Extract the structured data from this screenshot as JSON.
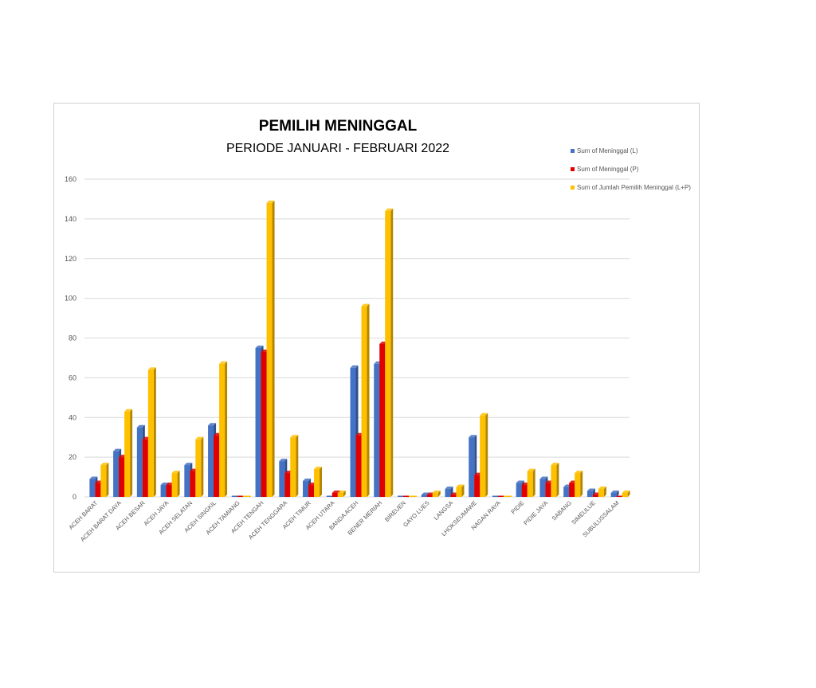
{
  "chart_data": {
    "type": "bar",
    "title": "PEMILIH MENINGGAL",
    "subtitle": "PERIODE JANUARI - FEBRUARI 2022",
    "xlabel": "",
    "ylabel": "",
    "ylim": [
      0,
      160
    ],
    "yticks": [
      0,
      20,
      40,
      60,
      80,
      100,
      120,
      140,
      160
    ],
    "grid": true,
    "legend_position": "top-right",
    "categories": [
      "ACEH BARAT",
      "ACEH BARAT DAYA",
      "ACEH BESAR",
      "ACEH JAYA",
      "ACEH SELATAN",
      "ACEH SINGKIL",
      "ACEH TAMIANG",
      "ACEH TENGAH",
      "ACEH TENGGARA",
      "ACEH TIMUR",
      "ACEH UTARA",
      "BANDA ACEH",
      "BENER MERIAH",
      "BIREUEN",
      "GAYO LUES",
      "LANGSA",
      "LHOKSEUMAWE",
      "NAGAN RAYA",
      "PIDIE",
      "PIDIE JAYA",
      "SABANG",
      "SIMEULUE",
      "SUBULUSSALAM"
    ],
    "series": [
      {
        "name": "Sum of Meninggal (L)",
        "color": "#4472C4",
        "values": [
          9,
          23,
          35,
          6,
          16,
          36,
          0,
          75,
          18,
          8,
          0,
          65,
          67,
          0,
          1,
          4,
          30,
          0,
          7,
          9,
          5,
          3,
          2
        ]
      },
      {
        "name": "Sum of Meninggal (P)",
        "color": "#E00000",
        "values": [
          7,
          20,
          29,
          6,
          13,
          31,
          0,
          73,
          12,
          6,
          2,
          31,
          77,
          0,
          1,
          1,
          11,
          0,
          6,
          7,
          7,
          1,
          0
        ]
      },
      {
        "name": "Sum of Jumlah Pemilih Meninggal (L+P)",
        "color": "#FFC000",
        "values": [
          16,
          43,
          64,
          12,
          29,
          67,
          0,
          148,
          30,
          14,
          2,
          96,
          144,
          0,
          2,
          5,
          41,
          0,
          13,
          16,
          12,
          4,
          2
        ]
      }
    ]
  }
}
